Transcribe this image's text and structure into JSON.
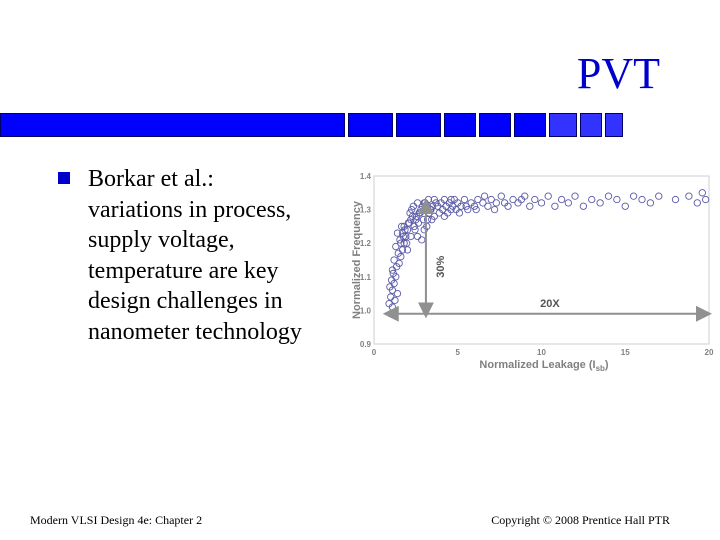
{
  "title": "PVT",
  "bullet_lines": [
    "Borkar et al.:",
    "variations in process,",
    "supply voltage,",
    "temperature are key",
    "design challenges in",
    "nanometer technology"
  ],
  "footer": {
    "left": "Modern VLSI Design 4e: Chapter 2",
    "right": "Copyright © 2008 Prentice Hall PTR"
  },
  "colors": {
    "accent": "#0000ff",
    "title": "#0000cc",
    "marker": "#5a5aa8",
    "axis": "#808080"
  },
  "chart_data": {
    "type": "scatter",
    "xlabel_main": "Normalized Leakage (I",
    "xlabel_sub": "sb",
    "xlabel_end": ")",
    "ylabel": "Normalized Frequency",
    "xlim": [
      0,
      20
    ],
    "ylim": [
      0.9,
      1.4
    ],
    "x_ticks": [
      "0",
      "5",
      "10",
      "15",
      "20"
    ],
    "y_ticks": [
      "0.9",
      "1.0",
      "1.1",
      "1.2",
      "1.3",
      "1.4"
    ],
    "annotations": {
      "vertical": "30%",
      "horizontal": "20X"
    },
    "points": [
      [
        0.9,
        1.02
      ],
      [
        1.0,
        1.04
      ],
      [
        1.1,
        1.06
      ],
      [
        0.95,
        1.07
      ],
      [
        1.2,
        1.08
      ],
      [
        1.05,
        1.09
      ],
      [
        1.3,
        1.1
      ],
      [
        1.15,
        1.11
      ],
      [
        1.4,
        1.05
      ],
      [
        1.25,
        1.03
      ],
      [
        1.1,
        1.12
      ],
      [
        1.35,
        1.13
      ],
      [
        1.5,
        1.14
      ],
      [
        1.2,
        1.15
      ],
      [
        1.6,
        1.16
      ],
      [
        1.45,
        1.17
      ],
      [
        1.7,
        1.18
      ],
      [
        1.3,
        1.19
      ],
      [
        1.8,
        1.2
      ],
      [
        1.55,
        1.21
      ],
      [
        1.9,
        1.22
      ],
      [
        1.4,
        1.23
      ],
      [
        2.0,
        1.24
      ],
      [
        1.65,
        1.25
      ],
      [
        2.1,
        1.26
      ],
      [
        1.75,
        1.22
      ],
      [
        2.2,
        1.27
      ],
      [
        1.85,
        1.24
      ],
      [
        2.3,
        1.28
      ],
      [
        1.95,
        1.2
      ],
      [
        2.05,
        1.26
      ],
      [
        2.4,
        1.25
      ],
      [
        2.15,
        1.29
      ],
      [
        2.5,
        1.27
      ],
      [
        2.25,
        1.3
      ],
      [
        2.6,
        1.22
      ],
      [
        2.35,
        1.31
      ],
      [
        2.7,
        1.29
      ],
      [
        2.45,
        1.24
      ],
      [
        2.8,
        1.3
      ],
      [
        2.55,
        1.28
      ],
      [
        2.9,
        1.31
      ],
      [
        2.65,
        1.26
      ],
      [
        3.0,
        1.32
      ],
      [
        2.75,
        1.29
      ],
      [
        3.1,
        1.3
      ],
      [
        2.85,
        1.21
      ],
      [
        3.2,
        1.31
      ],
      [
        2.95,
        1.27
      ],
      [
        3.3,
        1.29
      ],
      [
        3.05,
        1.32
      ],
      [
        3.4,
        1.3
      ],
      [
        3.15,
        1.25
      ],
      [
        3.5,
        1.31
      ],
      [
        3.25,
        1.33
      ],
      [
        3.6,
        1.28
      ],
      [
        3.35,
        1.3
      ],
      [
        3.7,
        1.32
      ],
      [
        3.45,
        1.27
      ],
      [
        3.8,
        1.31
      ],
      [
        3.9,
        1.29
      ],
      [
        4.0,
        1.32
      ],
      [
        4.1,
        1.3
      ],
      [
        4.2,
        1.33
      ],
      [
        4.3,
        1.31
      ],
      [
        4.4,
        1.29
      ],
      [
        4.5,
        1.32
      ],
      [
        4.6,
        1.3
      ],
      [
        4.7,
        1.31
      ],
      [
        4.8,
        1.33
      ],
      [
        4.9,
        1.3
      ],
      [
        5.0,
        1.32
      ],
      [
        5.2,
        1.31
      ],
      [
        5.4,
        1.33
      ],
      [
        5.6,
        1.3
      ],
      [
        5.8,
        1.32
      ],
      [
        6.0,
        1.31
      ],
      [
        6.2,
        1.33
      ],
      [
        6.5,
        1.32
      ],
      [
        6.8,
        1.31
      ],
      [
        7.0,
        1.33
      ],
      [
        7.3,
        1.32
      ],
      [
        7.6,
        1.34
      ],
      [
        8.0,
        1.31
      ],
      [
        8.3,
        1.33
      ],
      [
        8.6,
        1.32
      ],
      [
        9.0,
        1.34
      ],
      [
        9.3,
        1.31
      ],
      [
        9.6,
        1.33
      ],
      [
        10.0,
        1.32
      ],
      [
        10.4,
        1.34
      ],
      [
        10.8,
        1.31
      ],
      [
        11.2,
        1.33
      ],
      [
        11.6,
        1.32
      ],
      [
        12.0,
        1.34
      ],
      [
        12.5,
        1.31
      ],
      [
        13.0,
        1.33
      ],
      [
        13.5,
        1.32
      ],
      [
        14.0,
        1.34
      ],
      [
        14.5,
        1.33
      ],
      [
        15.0,
        1.31
      ],
      [
        15.5,
        1.34
      ],
      [
        16.0,
        1.33
      ],
      [
        16.5,
        1.32
      ],
      [
        17.0,
        1.34
      ],
      [
        18.0,
        1.33
      ],
      [
        18.8,
        1.34
      ],
      [
        19.3,
        1.32
      ],
      [
        19.6,
        1.35
      ],
      [
        19.8,
        1.33
      ],
      [
        1.0,
        0.99
      ],
      [
        1.1,
        1.01
      ],
      [
        1.6,
        1.2
      ],
      [
        1.7,
        1.23
      ],
      [
        1.8,
        1.25
      ],
      [
        2.0,
        1.18
      ],
      [
        2.2,
        1.22
      ],
      [
        2.6,
        1.32
      ],
      [
        3.0,
        1.24
      ],
      [
        3.2,
        1.27
      ],
      [
        3.6,
        1.33
      ],
      [
        4.2,
        1.28
      ],
      [
        4.6,
        1.33
      ],
      [
        5.1,
        1.29
      ],
      [
        5.5,
        1.31
      ],
      [
        6.1,
        1.3
      ],
      [
        6.6,
        1.34
      ],
      [
        7.2,
        1.3
      ],
      [
        7.8,
        1.32
      ],
      [
        8.8,
        1.33
      ]
    ]
  }
}
